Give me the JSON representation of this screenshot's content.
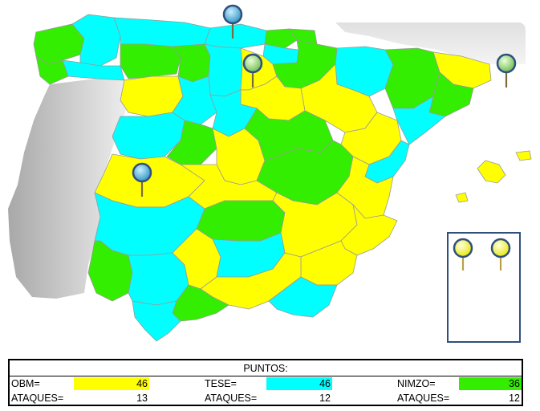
{
  "colors": {
    "yellow": "#ffff00",
    "cyan": "#00ffff",
    "green": "#33ee00",
    "sea_land": "#d8d8d8",
    "pin_blue": "#3aa7d8",
    "pin_green": "#8dd36a",
    "pin_yellow": "#f5f56a",
    "inset_border": "#2f4f7f"
  },
  "pins": [
    {
      "name": "pin-blue-north",
      "color": "blue",
      "icon": "map-pin-icon"
    },
    {
      "name": "pin-green-north",
      "color": "green",
      "icon": "map-pin-icon"
    },
    {
      "name": "pin-green-northeast",
      "color": "green",
      "icon": "map-pin-icon"
    },
    {
      "name": "pin-blue-west",
      "color": "blue",
      "icon": "map-pin-icon"
    },
    {
      "name": "pin-yellow-inset-1",
      "color": "yellow",
      "icon": "map-pin-icon"
    },
    {
      "name": "pin-yellow-inset-2",
      "color": "yellow",
      "icon": "map-pin-icon"
    }
  ],
  "scores": {
    "title": "PUNTOS:",
    "teams": [
      {
        "label": "OBM=",
        "points": "46",
        "attacks_label": "ATAQUES=",
        "attacks": "13",
        "color": "#ffff00"
      },
      {
        "label": "TESE=",
        "points": "46",
        "attacks_label": "ATAQUES=",
        "attacks": "12",
        "color": "#00ffff"
      },
      {
        "label": "NIMZO=",
        "points": "36",
        "attacks_label": "ATAQUES=",
        "attacks": "12",
        "color": "#33ee00"
      }
    ]
  }
}
